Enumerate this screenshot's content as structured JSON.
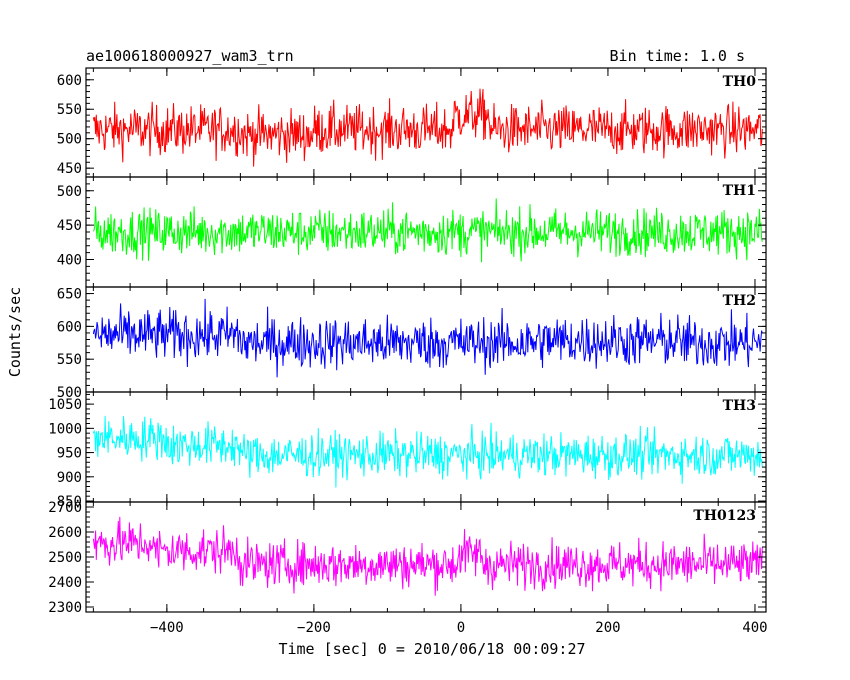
{
  "header": {
    "title": "ae100618000927_wam3_trn",
    "bin_time": "Bin time: 1.0 s"
  },
  "chart_data": {
    "type": "line",
    "xlabel": "Time [sec] 0 = 2010/06/18 00:09:27",
    "ylabel": "Counts/sec",
    "xlim": [
      -510,
      415
    ],
    "x_ticks": [
      -400,
      -200,
      0,
      200,
      400
    ],
    "x_tick_labels": [
      "−400",
      "−200",
      "0",
      "200",
      "400"
    ],
    "x_range": [
      -500,
      410
    ],
    "panels": [
      {
        "name": "TH0",
        "color": "#ff0000",
        "ylim": [
          435,
          620
        ],
        "ticks": [
          450,
          500,
          550,
          600
        ],
        "mean": 515,
        "noise": 30,
        "profile": "th0"
      },
      {
        "name": "TH1",
        "color": "#00ff00",
        "ylim": [
          360,
          520
        ],
        "ticks": [
          400,
          450,
          500
        ],
        "mean": 440,
        "noise": 24,
        "profile": "flat"
      },
      {
        "name": "TH2",
        "color": "#0000ff",
        "ylim": [
          500,
          660
        ],
        "ticks": [
          500,
          550,
          600,
          650
        ],
        "mean": 575,
        "noise": 28,
        "profile": "th2"
      },
      {
        "name": "TH3",
        "color": "#00ffff",
        "ylim": [
          848,
          1075
        ],
        "ticks": [
          850,
          900,
          950,
          1000,
          1050
        ],
        "mean": 950,
        "noise": 32,
        "profile": "th3"
      },
      {
        "name": "TH0123",
        "color": "#ff00ff",
        "ylim": [
          2280,
          2720
        ],
        "ticks": [
          2300,
          2400,
          2500,
          2600,
          2700
        ],
        "mean": 2470,
        "noise": 65,
        "profile": "th0123"
      }
    ]
  }
}
